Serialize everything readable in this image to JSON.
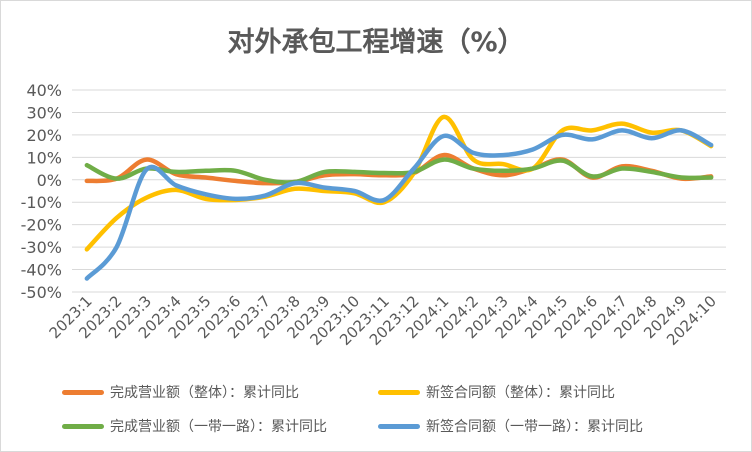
{
  "chart_data": {
    "type": "line",
    "title": "对外承包工程增速（%）",
    "categories": [
      "2023:1",
      "2023:2",
      "2023:3",
      "2023:4",
      "2023:5",
      "2023:6",
      "2023:7",
      "2023:8",
      "2023:9",
      "2023:10",
      "2023:11",
      "2023:12",
      "2024:1",
      "2024:2",
      "2024:3",
      "2024:4",
      "2024:5",
      "2024:6",
      "2024:7",
      "2024:8",
      "2024:9",
      "2024:10"
    ],
    "y_ticks": [
      "40%",
      "30%",
      "20%",
      "10%",
      "0%",
      "-10%",
      "-20%",
      "-30%",
      "-40%",
      "-50%"
    ],
    "ylim": [
      -50,
      40
    ],
    "grid": true,
    "legend_position": "bottom",
    "series": [
      {
        "name": "完成营业额（整体）：累计同比",
        "color": "#ED7D31",
        "values": [
          -0.5,
          0.5,
          9,
          2.5,
          1,
          -0.5,
          -1.5,
          -1,
          2,
          2.5,
          2,
          3,
          11,
          5,
          2,
          5,
          9,
          1,
          6,
          4,
          0.5,
          1.5
        ]
      },
      {
        "name": "新签合同额（整体）：累计同比",
        "color": "#FFC000",
        "values": [
          -31,
          -17,
          -8,
          -4.5,
          -8.5,
          -9,
          -7.5,
          -4,
          -5,
          -6,
          -10,
          3,
          28,
          9,
          7,
          5,
          22,
          22,
          25,
          21,
          22,
          15
        ]
      },
      {
        "name": "完成营业额（一带一路）：累计同比",
        "color": "#70AD47",
        "values": [
          6.5,
          0.5,
          5,
          3.5,
          4,
          4,
          0,
          -1,
          3.5,
          3.5,
          3,
          3.5,
          9,
          5,
          4,
          5,
          8.5,
          1.5,
          5,
          3.5,
          1,
          1
        ]
      },
      {
        "name": "新签合同额（一带一路）：累计同比",
        "color": "#5B9BD5",
        "values": [
          -44,
          -30,
          4.5,
          -2.5,
          -6.5,
          -8.5,
          -7,
          -1.5,
          -3.5,
          -5,
          -9,
          5,
          19.5,
          12,
          11,
          13.5,
          20,
          18,
          22,
          18.5,
          22,
          15.5
        ]
      }
    ]
  }
}
